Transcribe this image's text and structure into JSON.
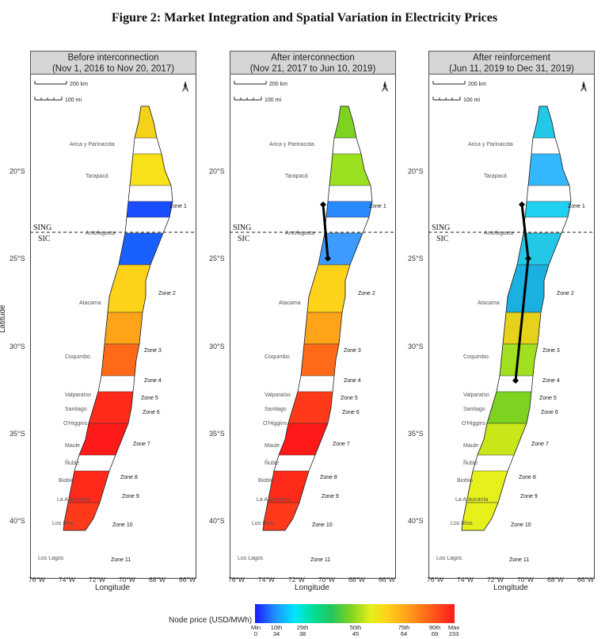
{
  "title": "Figure 2: Market Integration and Spatial Variation in Electricity Prices",
  "panels": [
    {
      "header_line1": "Before interconnection",
      "header_line2": "(Nov 1, 2016 to Nov 20, 2017)",
      "theme": "before"
    },
    {
      "header_line1": "After interconnection",
      "header_line2": "(Nov 21, 2017 to Jun 10, 2019)",
      "theme": "after"
    },
    {
      "header_line1": "After reinforcement",
      "header_line2": "(Jun 11, 2019 to Dec 31, 2019)",
      "theme": "reinforce"
    }
  ],
  "scale_bars": {
    "km": "200 km",
    "mi": "100 mi"
  },
  "north_arrow": "N",
  "regions": [
    "Arica y Parinacota",
    "Tarapacá",
    "Antofagasta",
    "Atacama",
    "Coquimbo",
    "Valparaíso",
    "Santiago",
    "O'Higgins",
    "Maule",
    "Ñuble",
    "Biobío",
    "La Araucanía",
    "Los Ríos",
    "Los Lagos"
  ],
  "zones": [
    "Zone 1",
    "Zone 2",
    "Zone 3",
    "Zone 4",
    "Zone 5",
    "Zone 6",
    "Zone 7",
    "Zone 8",
    "Zone 9",
    "Zone 10",
    "Zone 11"
  ],
  "sing_label": "SING",
  "sic_label": "SIC",
  "lat_ticks": [
    "20°S",
    "25°S",
    "30°S",
    "35°S",
    "40°S"
  ],
  "lon_ticks": [
    "76°W",
    "74°W",
    "72°W",
    "70°W",
    "68°W",
    "66°W"
  ],
  "xlabel": "Longitude",
  "ylabel": "Latitude",
  "legend": {
    "title": "Node price (USD/MWh)",
    "ticks": [
      {
        "label": "Min",
        "value": "0"
      },
      {
        "label": "10th",
        "value": "34"
      },
      {
        "label": "25th",
        "value": "38"
      },
      {
        "label": "50th",
        "value": "45"
      },
      {
        "label": "75th",
        "value": "64"
      },
      {
        "label": "90th",
        "value": "69"
      },
      {
        "label": "Max",
        "value": "233"
      }
    ]
  },
  "colors": {
    "before_north": "#f5d21a",
    "before_south": "#1a4dff",
    "after_north": "#7ed321",
    "after_south": "#1e7bff",
    "reinforce_north": "#22c8e6",
    "south": "#ff2a1a",
    "boundary": "#000000"
  }
}
